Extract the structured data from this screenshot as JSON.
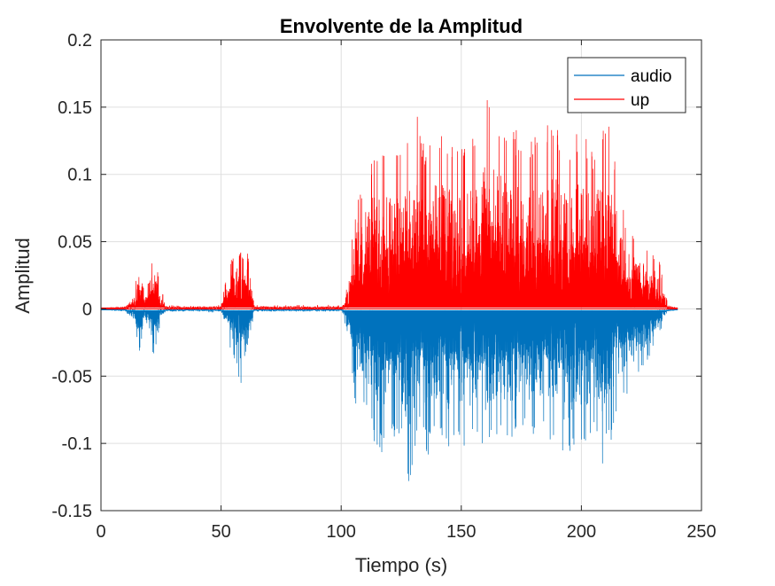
{
  "chart_data": {
    "type": "line",
    "title": "Envolvente de la Amplitud",
    "xlabel": "Tiempo (s)",
    "ylabel": "Amplitud",
    "xlim": [
      0,
      250
    ],
    "ylim": [
      -0.15,
      0.2
    ],
    "xticks": [
      0,
      50,
      100,
      150,
      200,
      250
    ],
    "xtick_labels": [
      "0",
      "50",
      "100",
      "150",
      "200",
      "250"
    ],
    "yticks": [
      -0.15,
      -0.1,
      -0.05,
      0,
      0.05,
      0.1,
      0.15,
      0.2
    ],
    "ytick_labels": [
      "-0.15",
      "-0.1",
      "-0.05",
      "0",
      "0.05",
      "0.1",
      "0.15",
      "0.2"
    ],
    "grid": true,
    "legend_position": "top-right",
    "series": [
      {
        "name": "audio",
        "color": "#0072BD",
        "style": "negative-peaks",
        "points": [
          [
            0,
            0.0
          ],
          [
            10,
            -0.002
          ],
          [
            14,
            -0.012
          ],
          [
            16,
            -0.032
          ],
          [
            18,
            -0.015
          ],
          [
            20,
            -0.022
          ],
          [
            22,
            -0.038
          ],
          [
            24,
            -0.018
          ],
          [
            27,
            -0.002
          ],
          [
            40,
            -0.002
          ],
          [
            50,
            -0.003
          ],
          [
            53,
            -0.025
          ],
          [
            56,
            -0.04
          ],
          [
            58,
            -0.059
          ],
          [
            60,
            -0.05
          ],
          [
            62,
            -0.03
          ],
          [
            64,
            -0.002
          ],
          [
            80,
            -0.002
          ],
          [
            100,
            -0.002
          ],
          [
            103,
            -0.02
          ],
          [
            105,
            -0.08
          ],
          [
            108,
            -0.06
          ],
          [
            112,
            -0.09
          ],
          [
            116,
            -0.11
          ],
          [
            120,
            -0.095
          ],
          [
            125,
            -0.1
          ],
          [
            128,
            -0.134
          ],
          [
            132,
            -0.09
          ],
          [
            136,
            -0.11
          ],
          [
            140,
            -0.095
          ],
          [
            143,
            -0.11
          ],
          [
            148,
            -0.1
          ],
          [
            152,
            -0.105
          ],
          [
            156,
            -0.1
          ],
          [
            160,
            -0.11
          ],
          [
            165,
            -0.095
          ],
          [
            170,
            -0.1
          ],
          [
            175,
            -0.09
          ],
          [
            180,
            -0.1
          ],
          [
            185,
            -0.09
          ],
          [
            190,
            -0.11
          ],
          [
            193,
            -0.125
          ],
          [
            198,
            -0.1
          ],
          [
            202,
            -0.11
          ],
          [
            205,
            -0.09
          ],
          [
            208,
            -0.12
          ],
          [
            212,
            -0.1
          ],
          [
            216,
            -0.075
          ],
          [
            220,
            -0.065
          ],
          [
            225,
            -0.045
          ],
          [
            228,
            -0.04
          ],
          [
            232,
            -0.02
          ],
          [
            236,
            -0.003
          ],
          [
            240,
            0.0
          ]
        ]
      },
      {
        "name": "up",
        "color": "#FF0000",
        "style": "positive-peaks",
        "points": [
          [
            0,
            0.0
          ],
          [
            10,
            0.002
          ],
          [
            14,
            0.015
          ],
          [
            16,
            0.038
          ],
          [
            18,
            0.02
          ],
          [
            20,
            0.03
          ],
          [
            22,
            0.04
          ],
          [
            24,
            0.025
          ],
          [
            27,
            0.003
          ],
          [
            40,
            0.002
          ],
          [
            50,
            0.003
          ],
          [
            53,
            0.03
          ],
          [
            56,
            0.05
          ],
          [
            58,
            0.062
          ],
          [
            60,
            0.05
          ],
          [
            62,
            0.035
          ],
          [
            64,
            0.003
          ],
          [
            80,
            0.003
          ],
          [
            100,
            0.003
          ],
          [
            103,
            0.02
          ],
          [
            105,
            0.1
          ],
          [
            108,
            0.09
          ],
          [
            112,
            0.115
          ],
          [
            116,
            0.128
          ],
          [
            120,
            0.12
          ],
          [
            124,
            0.13
          ],
          [
            128,
            0.13
          ],
          [
            131,
            0.148
          ],
          [
            135,
            0.12
          ],
          [
            140,
            0.135
          ],
          [
            144,
            0.13
          ],
          [
            148,
            0.12
          ],
          [
            152,
            0.125
          ],
          [
            156,
            0.13
          ],
          [
            160,
            0.155
          ],
          [
            163,
            0.165
          ],
          [
            167,
            0.14
          ],
          [
            170,
            0.13
          ],
          [
            175,
            0.135
          ],
          [
            180,
            0.13
          ],
          [
            184,
            0.14
          ],
          [
            188,
            0.145
          ],
          [
            192,
            0.13
          ],
          [
            195,
            0.12
          ],
          [
            198,
            0.13
          ],
          [
            200,
            0.14
          ],
          [
            204,
            0.12
          ],
          [
            208,
            0.13
          ],
          [
            212,
            0.145
          ],
          [
            216,
            0.085
          ],
          [
            220,
            0.06
          ],
          [
            225,
            0.05
          ],
          [
            228,
            0.045
          ],
          [
            232,
            0.04
          ],
          [
            236,
            0.003
          ],
          [
            240,
            0.0
          ]
        ]
      }
    ]
  }
}
